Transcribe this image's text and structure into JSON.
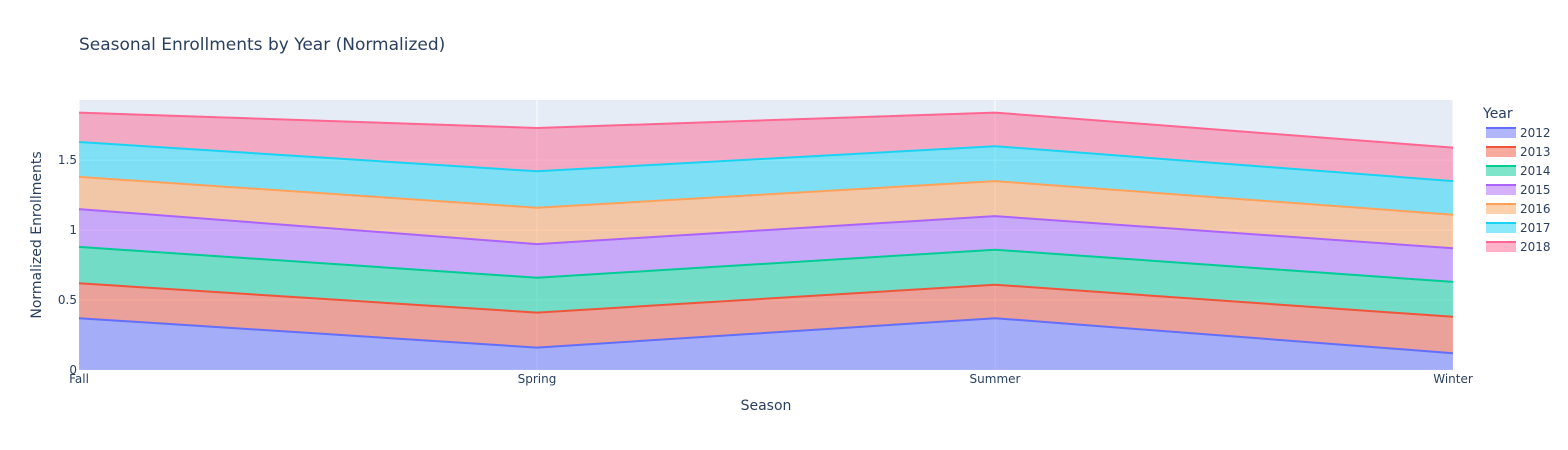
{
  "chart_data": {
    "type": "area",
    "stacked": true,
    "title": "Seasonal Enrollments by Year (Normalized)",
    "xlabel": "Season",
    "ylabel": "Normalized Enrollments",
    "categories": [
      "Fall",
      "Spring",
      "Summer",
      "Winter"
    ],
    "ylim": [
      0,
      1.93
    ],
    "y_ticks": [
      0,
      0.5,
      1,
      1.5
    ],
    "y_tick_labels": [
      "0",
      "0.5",
      "1",
      "1.5"
    ],
    "grid": true,
    "legend_title": "Year",
    "legend_position": "top-right",
    "plot_background": "#e5ecf6",
    "series": [
      {
        "name": "2012",
        "color": "#636efa",
        "values": [
          0.37,
          0.16,
          0.37,
          0.12
        ]
      },
      {
        "name": "2013",
        "color": "#ef553b",
        "values": [
          0.25,
          0.25,
          0.24,
          0.26
        ]
      },
      {
        "name": "2014",
        "color": "#00cc96",
        "values": [
          0.26,
          0.25,
          0.25,
          0.25
        ]
      },
      {
        "name": "2015",
        "color": "#ab63fa",
        "values": [
          0.27,
          0.24,
          0.24,
          0.24
        ]
      },
      {
        "name": "2016",
        "color": "#ffa15a",
        "values": [
          0.23,
          0.26,
          0.25,
          0.24
        ]
      },
      {
        "name": "2017",
        "color": "#19d3f3",
        "values": [
          0.25,
          0.26,
          0.25,
          0.24
        ]
      },
      {
        "name": "2018",
        "color": "#ff6692",
        "values": [
          0.21,
          0.31,
          0.24,
          0.24
        ]
      }
    ]
  }
}
